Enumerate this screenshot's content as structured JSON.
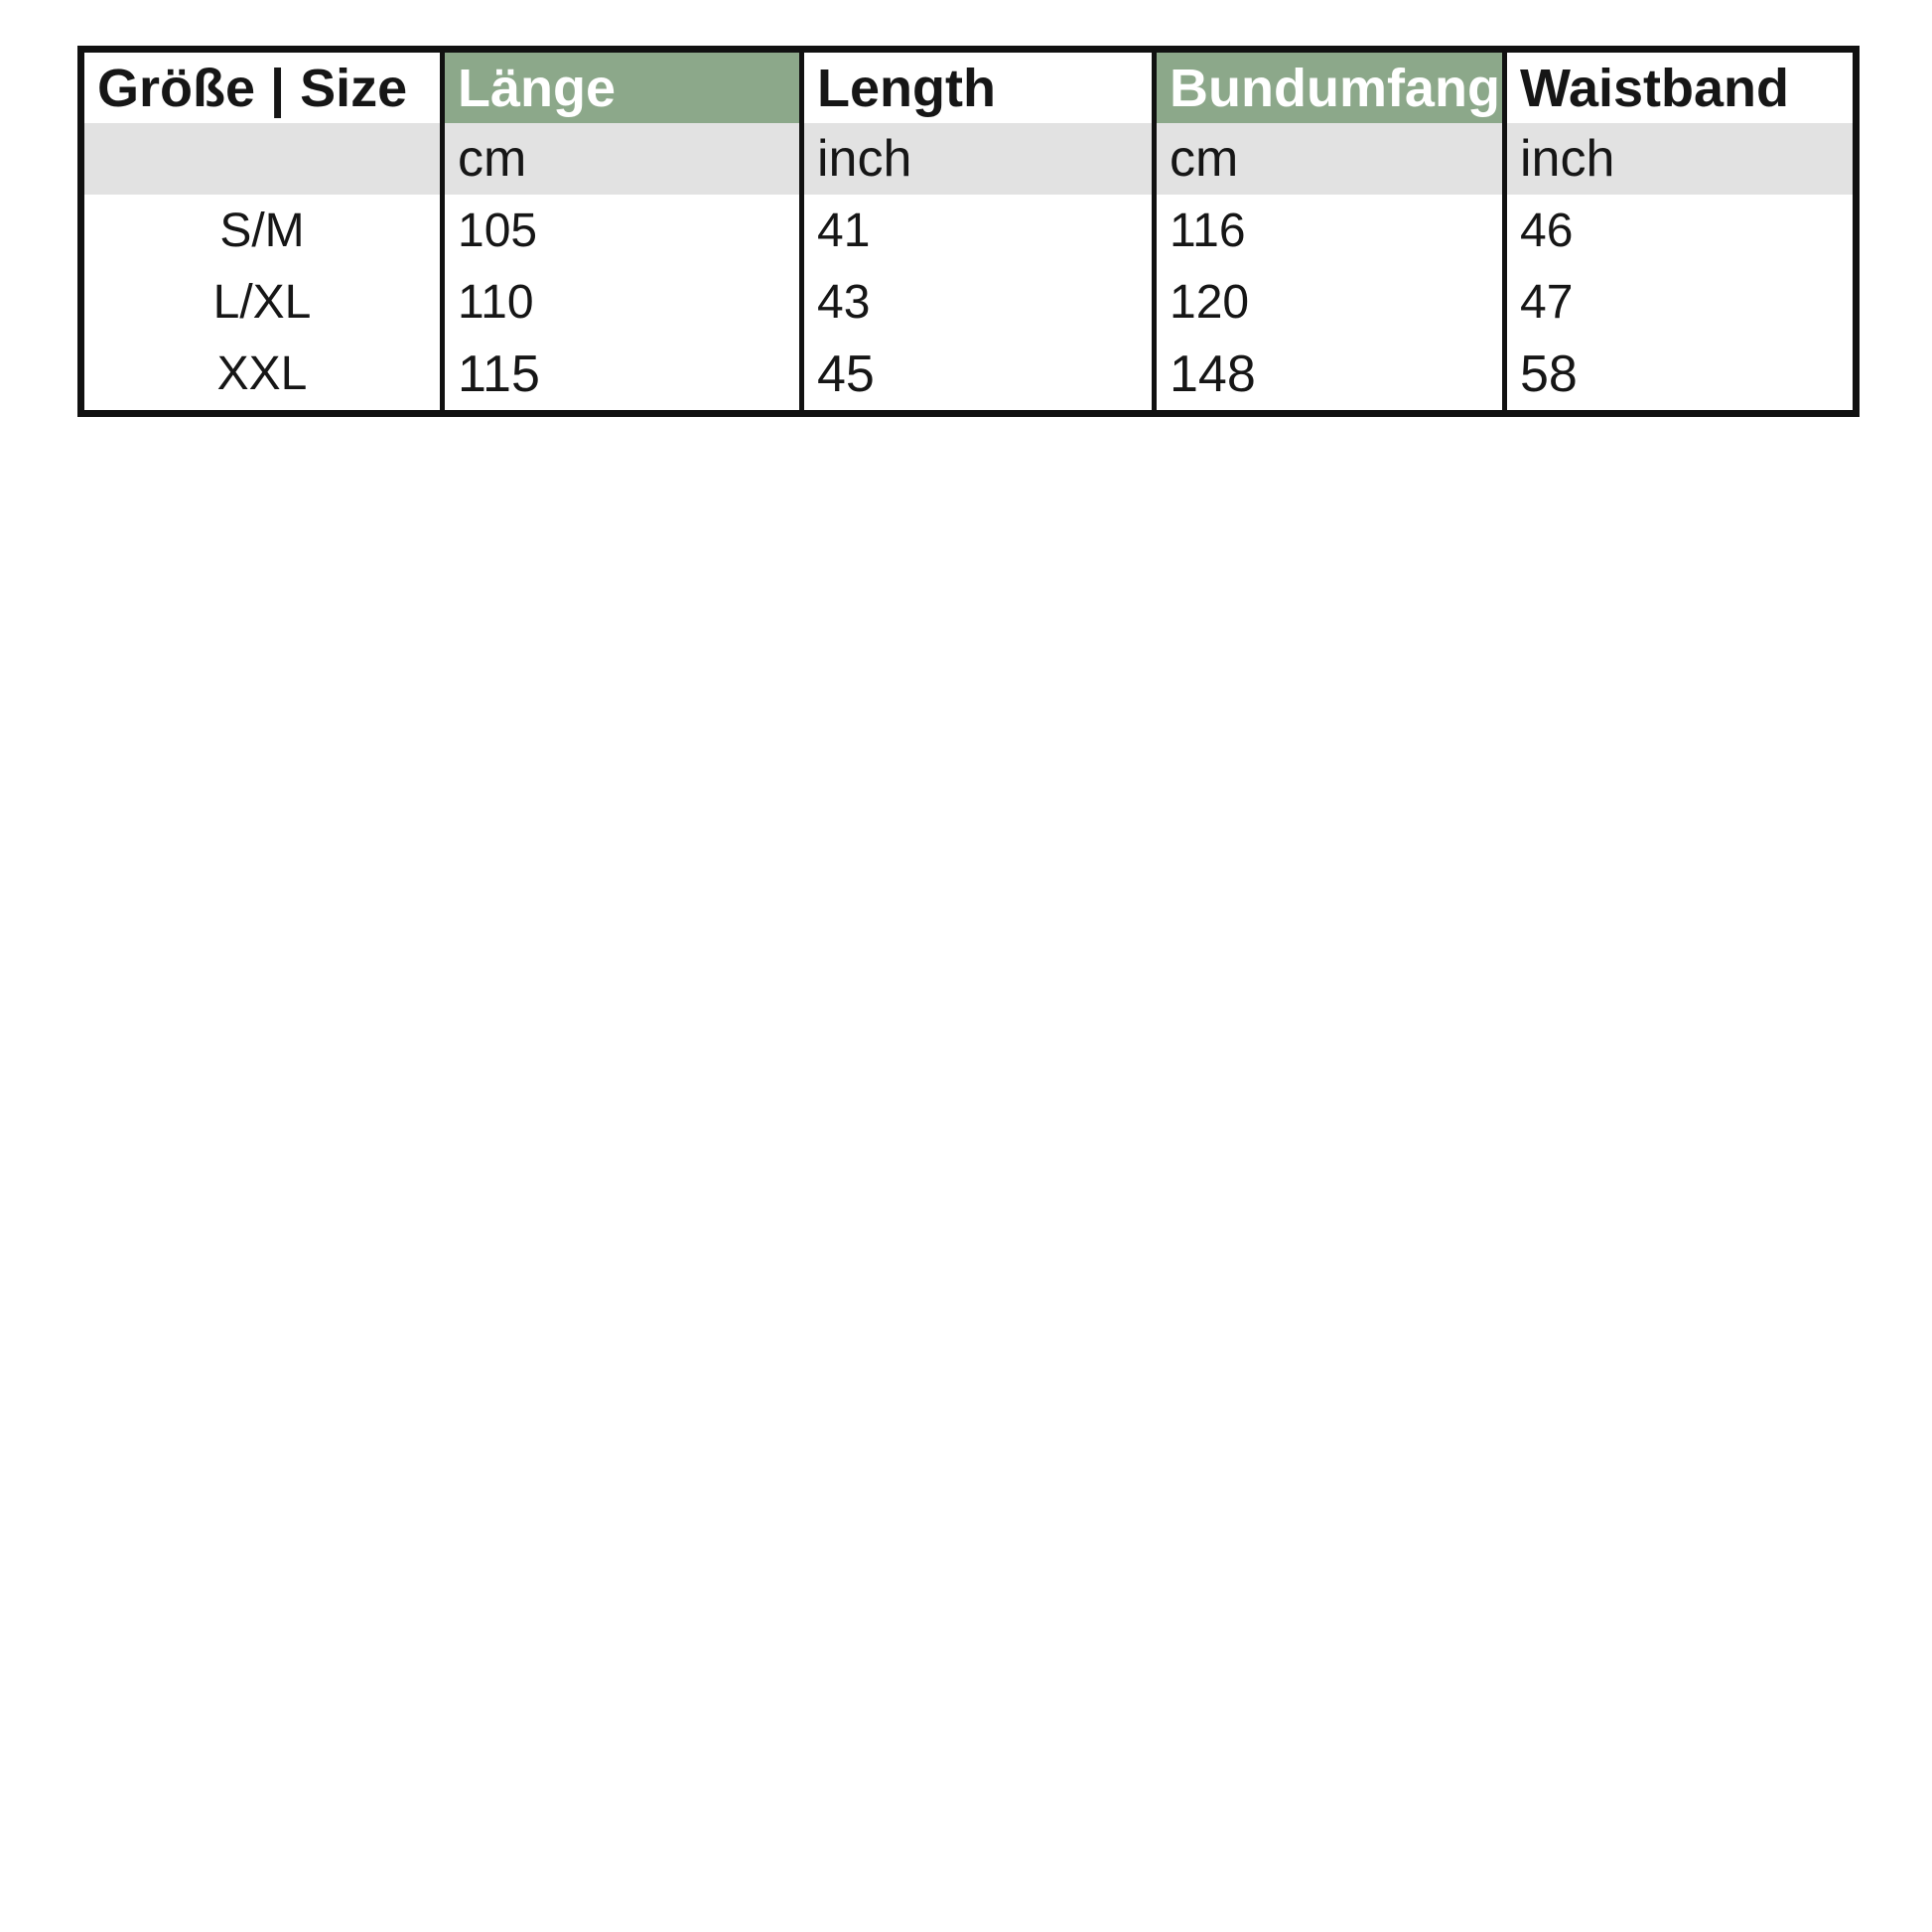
{
  "size_chart": {
    "columns": [
      {
        "header": "Größe | Size",
        "unit": "",
        "highlighted": false
      },
      {
        "header": "Länge",
        "unit": "cm",
        "highlighted": true
      },
      {
        "header": "Length",
        "unit": "inch",
        "highlighted": false
      },
      {
        "header": "Bundumfang",
        "unit": "cm",
        "highlighted": true
      },
      {
        "header": "Waistband",
        "unit": "inch",
        "highlighted": false
      }
    ],
    "rows": [
      {
        "size": "S/M",
        "values": [
          "105",
          "41",
          "116",
          "46"
        ]
      },
      {
        "size": "L/XL",
        "values": [
          "110",
          "43",
          "120",
          "47"
        ]
      },
      {
        "size": "XXL",
        "values": [
          "115",
          "45",
          "148",
          "58"
        ]
      }
    ],
    "colors": {
      "header_highlight_green": "#8ca88a",
      "header_text_on_green": "#ffffff",
      "units_row_gray": "#e2e2e2",
      "border_black": "#111111",
      "text_black": "#161616"
    }
  }
}
